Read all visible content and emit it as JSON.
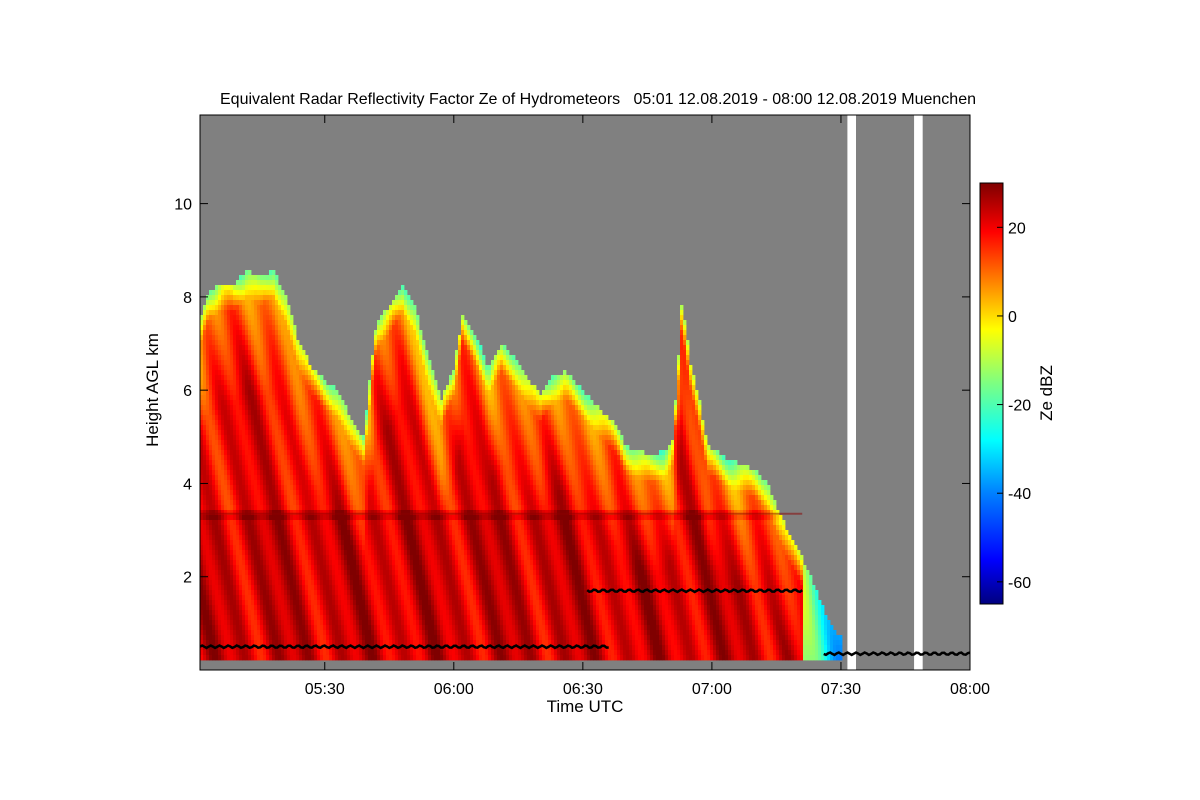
{
  "chart_data": {
    "type": "heatmap",
    "title": "Equivalent Radar Reflectivity Factor Ze of Hydrometeors   05:01 12.08.2019 - 08:00 12.08.2019 Muenchen",
    "xlabel": "Time UTC",
    "ylabel": "Height AGL km",
    "xlim_minutes": [
      301,
      480
    ],
    "ylim_km": [
      0,
      11.9
    ],
    "x_ticks": [
      {
        "minute": 330,
        "label": "05:30"
      },
      {
        "minute": 360,
        "label": "06:00"
      },
      {
        "minute": 390,
        "label": "06:30"
      },
      {
        "minute": 420,
        "label": "07:00"
      },
      {
        "minute": 450,
        "label": "07:30"
      },
      {
        "minute": 480,
        "label": "08:00"
      }
    ],
    "y_ticks": [
      {
        "value": 2,
        "label": "2"
      },
      {
        "value": 4,
        "label": "4"
      },
      {
        "value": 6,
        "label": "6"
      },
      {
        "value": 8,
        "label": "8"
      },
      {
        "value": 10,
        "label": "10"
      }
    ],
    "colorbar": {
      "label": "Ze dBZ",
      "range": [
        -65,
        30
      ],
      "ticks": [
        {
          "value": 20,
          "label": "20"
        },
        {
          "value": 0,
          "label": "0"
        },
        {
          "value": -20,
          "label": "-20"
        },
        {
          "value": -40,
          "label": "-40"
        },
        {
          "value": -60,
          "label": "-60"
        }
      ],
      "stops": [
        {
          "value": -65,
          "color": "#00007f"
        },
        {
          "value": -55,
          "color": "#0000ff"
        },
        {
          "value": -40,
          "color": "#0080ff"
        },
        {
          "value": -28,
          "color": "#00ffff"
        },
        {
          "value": -15,
          "color": "#7fff80"
        },
        {
          "value": -3,
          "color": "#ffff00"
        },
        {
          "value": 8,
          "color": "#ff8000"
        },
        {
          "value": 19,
          "color": "#ff0000"
        },
        {
          "value": 30,
          "color": "#7f0000"
        }
      ]
    },
    "background_color": "#808080",
    "cloud_top_km": [
      [
        301,
        7.5
      ],
      [
        303,
        8.1
      ],
      [
        306,
        8.3
      ],
      [
        309,
        8.3
      ],
      [
        312,
        8.6
      ],
      [
        315,
        8.4
      ],
      [
        318,
        8.6
      ],
      [
        321,
        8.0
      ],
      [
        324,
        7.0
      ],
      [
        327,
        6.5
      ],
      [
        330,
        6.2
      ],
      [
        333,
        6.0
      ],
      [
        336,
        5.4
      ],
      [
        339,
        5.0
      ],
      [
        342,
        7.5
      ],
      [
        345,
        7.8
      ],
      [
        348,
        8.3
      ],
      [
        351,
        7.8
      ],
      [
        354,
        6.7
      ],
      [
        357,
        5.8
      ],
      [
        360,
        6.5
      ],
      [
        362,
        7.6
      ],
      [
        365,
        7.2
      ],
      [
        368,
        6.5
      ],
      [
        371,
        7.0
      ],
      [
        374,
        6.7
      ],
      [
        377,
        6.3
      ],
      [
        380,
        5.9
      ],
      [
        383,
        6.3
      ],
      [
        386,
        6.4
      ],
      [
        389,
        6.1
      ],
      [
        392,
        5.8
      ],
      [
        395,
        5.5
      ],
      [
        398,
        5.2
      ],
      [
        400,
        4.8
      ],
      [
        403,
        4.7
      ],
      [
        406,
        4.6
      ],
      [
        409,
        4.7
      ],
      [
        411,
        5.0
      ],
      [
        413,
        7.9
      ],
      [
        415,
        6.6
      ],
      [
        417,
        5.8
      ],
      [
        419,
        4.8
      ],
      [
        421,
        4.7
      ],
      [
        424,
        4.5
      ],
      [
        427,
        4.4
      ],
      [
        430,
        4.3
      ],
      [
        433,
        4.0
      ],
      [
        436,
        3.3
      ],
      [
        438,
        2.9
      ],
      [
        441,
        2.4
      ],
      [
        443,
        2.0
      ],
      [
        446,
        1.3
      ],
      [
        448,
        0.9
      ],
      [
        450,
        0.7
      ]
    ],
    "melting_layer_km": 3.35,
    "annotations": [
      {
        "type": "ceilometer_cloud_base",
        "from_minute": 301,
        "to_minute": 396,
        "height_km": 0.5
      },
      {
        "type": "ceilometer_cloud_base",
        "from_minute": 391,
        "to_minute": 441,
        "height_km": 1.7
      },
      {
        "type": "ceilometer_cloud_base",
        "from_minute": 446,
        "to_minute": 480,
        "height_km": 0.35
      },
      {
        "type": "missing_data",
        "from_minute": 451.5,
        "to_minute": 453.5
      },
      {
        "type": "missing_data",
        "from_minute": 467,
        "to_minute": 469
      }
    ]
  }
}
